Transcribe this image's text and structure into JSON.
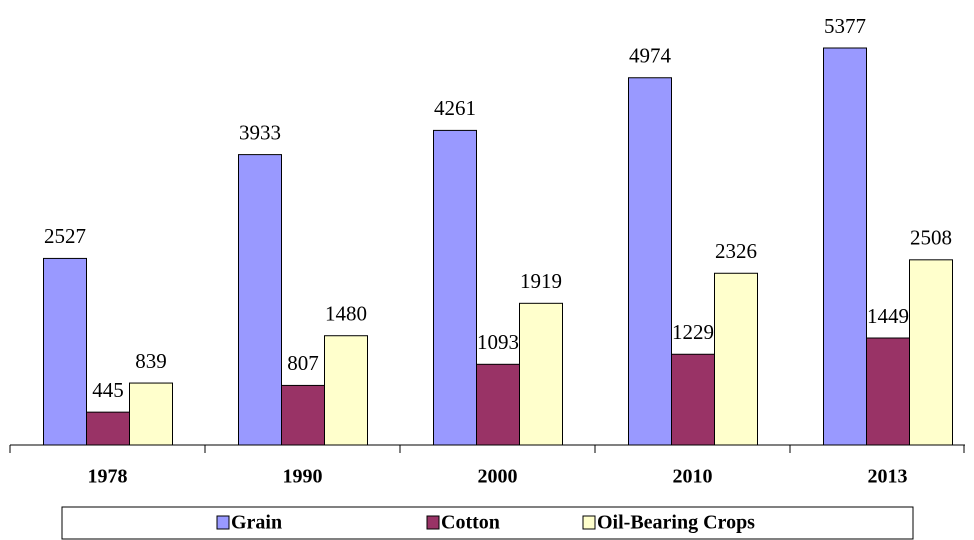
{
  "chart_data": {
    "type": "bar",
    "categories": [
      "1978",
      "1990",
      "2000",
      "2010",
      "2013"
    ],
    "series": [
      {
        "name": "Grain",
        "color": "#9999ff",
        "values": [
          2527,
          3933,
          4261,
          4974,
          5377
        ]
      },
      {
        "name": "Cotton",
        "color": "#993366",
        "values": [
          445,
          807,
          1093,
          1229,
          1449
        ]
      },
      {
        "name": "Oil-Bearing Crops",
        "color": "#ffffcc",
        "values": [
          839,
          1480,
          1919,
          2326,
          2508
        ]
      }
    ],
    "ylim": [
      0,
      6000
    ]
  }
}
